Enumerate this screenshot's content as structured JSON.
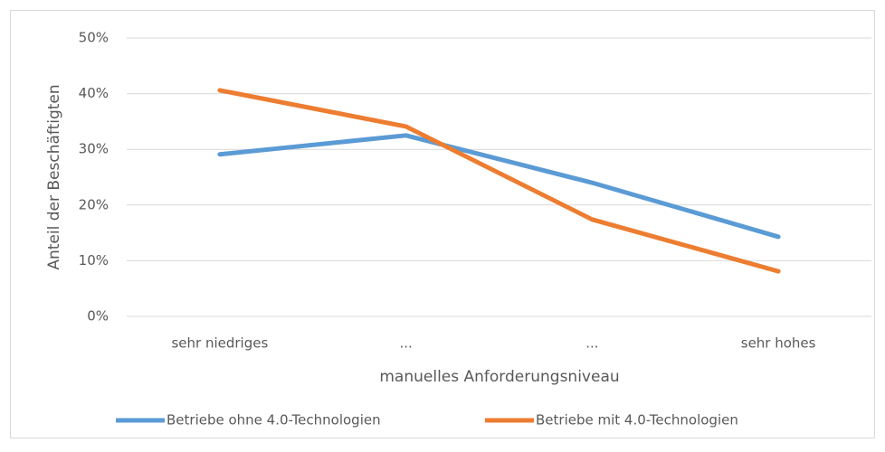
{
  "chart_data": {
    "type": "line",
    "categories": [
      "sehr niedriges",
      "...",
      "...",
      "sehr hohes"
    ],
    "series": [
      {
        "name": "Betriebe ohne 4.0-Technologien",
        "color": "#5b9bd5",
        "values": [
          29.1,
          32.5,
          24.0,
          14.3
        ]
      },
      {
        "name": "Betriebe mit 4.0-Technologien",
        "color": "#ed7d31",
        "values": [
          40.6,
          34.1,
          17.4,
          8.1
        ]
      }
    ],
    "ylim": [
      0,
      50
    ],
    "yticks": [
      {
        "value": 0,
        "label": "0%"
      },
      {
        "value": 10,
        "label": "10%"
      },
      {
        "value": 20,
        "label": "20%"
      },
      {
        "value": 30,
        "label": "30%"
      },
      {
        "value": 40,
        "label": "40%"
      },
      {
        "value": 50,
        "label": "50%"
      }
    ],
    "grid": true,
    "xlabel": "manuelles Anforderungsniveau",
    "ylabel": "Anteil der Beschäftigten",
    "legend": "bottom"
  }
}
